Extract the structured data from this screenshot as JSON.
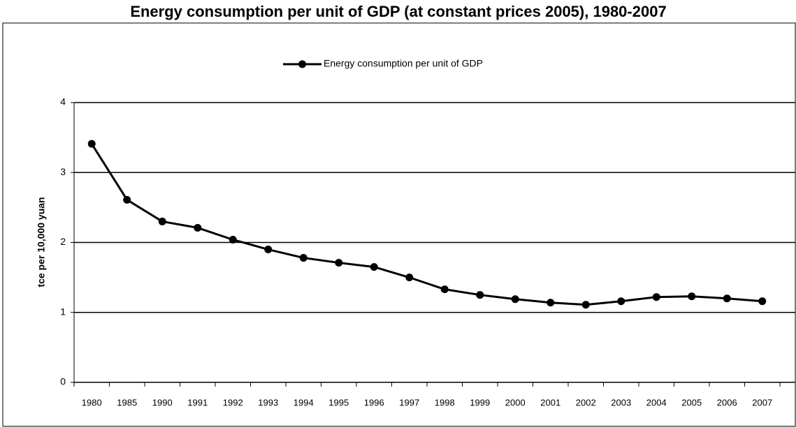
{
  "chart_data": {
    "type": "line",
    "title": "Energy consumption per unit of GDP (at constant prices 2005), 1980-2007",
    "y_label": "tce per 10,000 yuan",
    "categories": [
      "1980",
      "1985",
      "1990",
      "1991",
      "1992",
      "1993",
      "1994",
      "1995",
      "1996",
      "1997",
      "1998",
      "1999",
      "2000",
      "2001",
      "2002",
      "2003",
      "2004",
      "2005",
      "2006",
      "2007"
    ],
    "series": [
      {
        "name": "Energy consumption per unit of GDP",
        "color": "#000000",
        "values": [
          3.41,
          2.61,
          2.3,
          2.21,
          2.04,
          1.9,
          1.78,
          1.71,
          1.65,
          1.5,
          1.33,
          1.25,
          1.19,
          1.14,
          1.11,
          1.16,
          1.22,
          1.23,
          1.2,
          1.16
        ]
      }
    ],
    "ylim": [
      0,
      4
    ],
    "yticks": [
      0,
      1,
      2,
      3,
      4
    ],
    "grid": true,
    "legend": "top"
  }
}
